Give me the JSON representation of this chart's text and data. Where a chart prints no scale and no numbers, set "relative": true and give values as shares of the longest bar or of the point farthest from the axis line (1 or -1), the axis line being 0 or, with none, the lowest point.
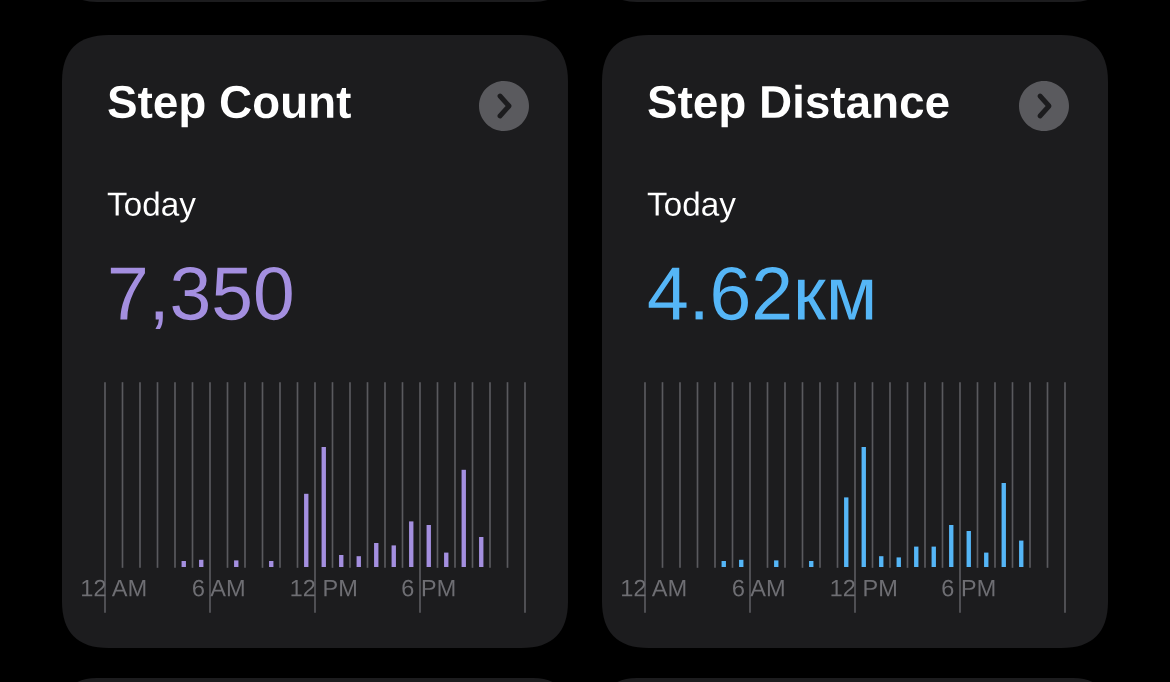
{
  "chart_data": [
    {
      "type": "bar",
      "title": "Step Count",
      "subtitle": "Today",
      "annotations": [
        "7,350"
      ],
      "relative": true,
      "grid": "x",
      "color": "#a48fe0",
      "categories": [
        "12 AM",
        null,
        null,
        null,
        null,
        null,
        "6 AM",
        null,
        null,
        null,
        null,
        null,
        "12 PM",
        null,
        null,
        null,
        null,
        null,
        "6 PM",
        null,
        null,
        null,
        null,
        null
      ],
      "values": [
        0,
        0,
        0,
        0,
        0.05,
        0.06,
        0,
        0.055,
        0,
        0.05,
        0,
        0.61,
        1,
        0.1,
        0.09,
        0.2,
        0.18,
        0.38,
        0.35,
        0.12,
        0.81,
        0.25,
        0,
        0
      ]
    },
    {
      "type": "bar",
      "title": "Step Distance",
      "subtitle": "Today",
      "annotations": [
        "4.62км"
      ],
      "relative": true,
      "grid": "x",
      "color": "#55b6f7",
      "categories": [
        "12 AM",
        null,
        null,
        null,
        null,
        null,
        "6 AM",
        null,
        null,
        null,
        null,
        null,
        "12 PM",
        null,
        null,
        null,
        null,
        null,
        "6 PM",
        null,
        null,
        null,
        null,
        null
      ],
      "values": [
        0,
        0,
        0,
        0,
        0.05,
        0.06,
        0,
        0.055,
        0,
        0.05,
        0,
        0.58,
        1,
        0.09,
        0.08,
        0.17,
        0.17,
        0.35,
        0.3,
        0.12,
        0.7,
        0.22,
        0,
        0
      ]
    }
  ]
}
